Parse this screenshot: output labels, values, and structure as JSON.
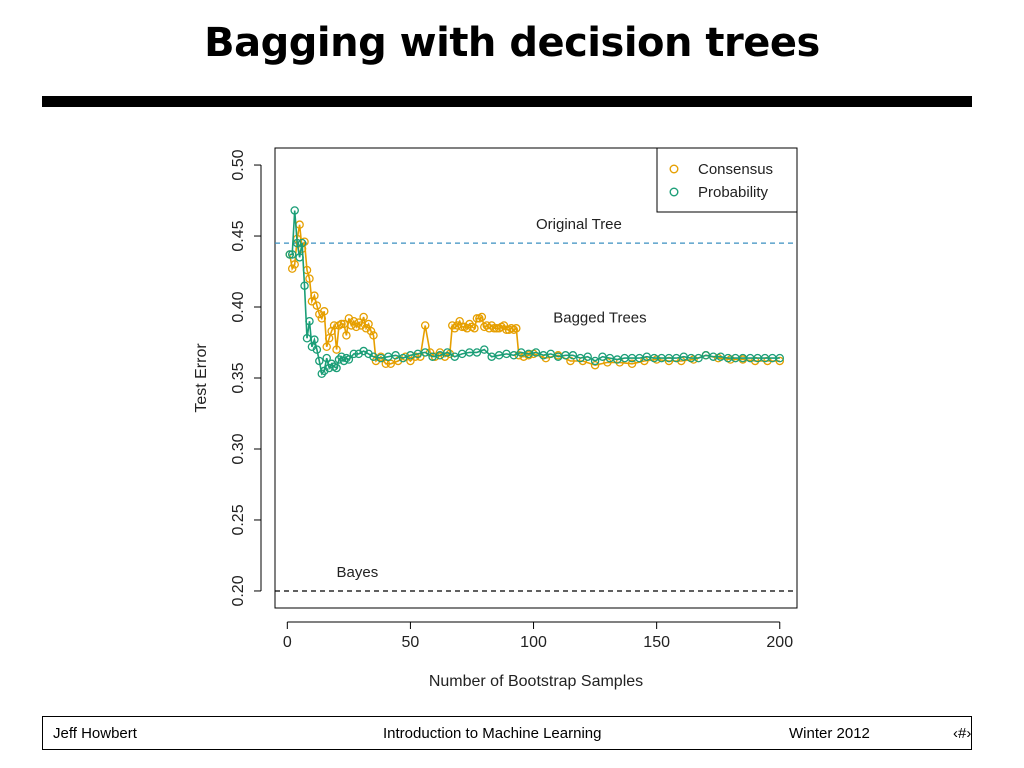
{
  "slide": {
    "title": "Bagging with decision trees"
  },
  "footer": {
    "author": "Jeff Howbert",
    "course": "Introduction to Machine Learning",
    "term": "Winter 2012",
    "page": "‹#›"
  },
  "chart_data": {
    "type": "line",
    "xlabel": "Number of Bootstrap Samples",
    "ylabel": "Test Error",
    "xlim": [
      -5,
      207
    ],
    "ylim": [
      0.188,
      0.512
    ],
    "xticks": [
      "0",
      "50",
      "100",
      "150",
      "200"
    ],
    "xtick_values": [
      0,
      50,
      100,
      150,
      200
    ],
    "yticks": [
      "0.20",
      "0.25",
      "0.30",
      "0.35",
      "0.40",
      "0.45",
      "0.50"
    ],
    "ytick_values": [
      0.2,
      0.25,
      0.3,
      0.35,
      0.4,
      0.45,
      0.5
    ],
    "grid": false,
    "legend_position": "top-right",
    "reference_lines": [
      {
        "label": "Original Tree",
        "y": 0.445,
        "color": "#3a8fc0",
        "label_x": 101
      },
      {
        "label": "Bayes",
        "y": 0.2,
        "color": "#000000",
        "label_x": 20
      }
    ],
    "annotations": [
      {
        "text": "Bagged Trees",
        "x": 108,
        "y": 0.389
      }
    ],
    "series": [
      {
        "name": "Consensus",
        "color": "#e69f00",
        "x": [
          1,
          2,
          3,
          4,
          5,
          6,
          7,
          8,
          9,
          10,
          11,
          12,
          13,
          14,
          15,
          16,
          17,
          18,
          19,
          20,
          21,
          22,
          23,
          24,
          25,
          26,
          27,
          28,
          29,
          30,
          31,
          32,
          33,
          34,
          35,
          36,
          38,
          40,
          42,
          45,
          48,
          50,
          52,
          54,
          56,
          58,
          60,
          62,
          64,
          66,
          67,
          68,
          69,
          70,
          71,
          72,
          73,
          74,
          75,
          76,
          77,
          78,
          79,
          80,
          81,
          82,
          83,
          84,
          85,
          86,
          87,
          88,
          89,
          90,
          91,
          92,
          93,
          94,
          96,
          98,
          100,
          105,
          110,
          115,
          120,
          125,
          130,
          135,
          140,
          145,
          150,
          155,
          160,
          165,
          170,
          175,
          180,
          185,
          190,
          195,
          200
        ],
        "y": [
          0.437,
          0.427,
          0.43,
          0.448,
          0.458,
          0.441,
          0.446,
          0.426,
          0.42,
          0.404,
          0.408,
          0.401,
          0.395,
          0.392,
          0.397,
          0.372,
          0.378,
          0.383,
          0.387,
          0.37,
          0.387,
          0.388,
          0.388,
          0.38,
          0.392,
          0.387,
          0.39,
          0.386,
          0.389,
          0.387,
          0.393,
          0.385,
          0.388,
          0.383,
          0.38,
          0.362,
          0.365,
          0.36,
          0.36,
          0.362,
          0.365,
          0.362,
          0.365,
          0.365,
          0.387,
          0.368,
          0.365,
          0.368,
          0.365,
          0.367,
          0.387,
          0.385,
          0.387,
          0.39,
          0.386,
          0.386,
          0.385,
          0.388,
          0.386,
          0.385,
          0.392,
          0.392,
          0.393,
          0.386,
          0.387,
          0.385,
          0.387,
          0.385,
          0.385,
          0.385,
          0.386,
          0.387,
          0.384,
          0.384,
          0.385,
          0.384,
          0.385,
          0.366,
          0.365,
          0.366,
          0.367,
          0.364,
          0.366,
          0.362,
          0.362,
          0.359,
          0.361,
          0.361,
          0.36,
          0.362,
          0.363,
          0.362,
          0.362,
          0.363,
          0.366,
          0.364,
          0.363,
          0.363,
          0.362,
          0.362,
          0.362
        ]
      },
      {
        "name": "Probability",
        "color": "#1b9e77",
        "x": [
          1,
          2,
          3,
          4,
          5,
          6,
          7,
          8,
          9,
          10,
          11,
          12,
          13,
          14,
          15,
          16,
          17,
          18,
          19,
          20,
          21,
          22,
          23,
          24,
          25,
          27,
          29,
          31,
          33,
          35,
          38,
          41,
          44,
          47,
          50,
          53,
          56,
          59,
          62,
          65,
          68,
          71,
          74,
          77,
          80,
          83,
          86,
          89,
          92,
          95,
          98,
          101,
          104,
          107,
          110,
          113,
          116,
          119,
          122,
          125,
          128,
          131,
          134,
          137,
          140,
          143,
          146,
          149,
          152,
          155,
          158,
          161,
          164,
          167,
          170,
          173,
          176,
          179,
          182,
          185,
          188,
          191,
          194,
          197,
          200
        ],
        "y": [
          0.437,
          0.437,
          0.468,
          0.445,
          0.435,
          0.445,
          0.415,
          0.378,
          0.39,
          0.372,
          0.377,
          0.37,
          0.362,
          0.353,
          0.355,
          0.364,
          0.357,
          0.36,
          0.358,
          0.357,
          0.363,
          0.365,
          0.362,
          0.364,
          0.363,
          0.367,
          0.367,
          0.369,
          0.367,
          0.365,
          0.364,
          0.365,
          0.366,
          0.364,
          0.366,
          0.367,
          0.368,
          0.365,
          0.366,
          0.368,
          0.365,
          0.367,
          0.368,
          0.368,
          0.37,
          0.365,
          0.366,
          0.367,
          0.366,
          0.368,
          0.367,
          0.368,
          0.366,
          0.367,
          0.365,
          0.366,
          0.366,
          0.364,
          0.365,
          0.362,
          0.365,
          0.364,
          0.363,
          0.364,
          0.364,
          0.364,
          0.365,
          0.364,
          0.364,
          0.364,
          0.364,
          0.365,
          0.364,
          0.364,
          0.366,
          0.365,
          0.365,
          0.364,
          0.364,
          0.364,
          0.364,
          0.364,
          0.364,
          0.364,
          0.364
        ]
      }
    ]
  }
}
